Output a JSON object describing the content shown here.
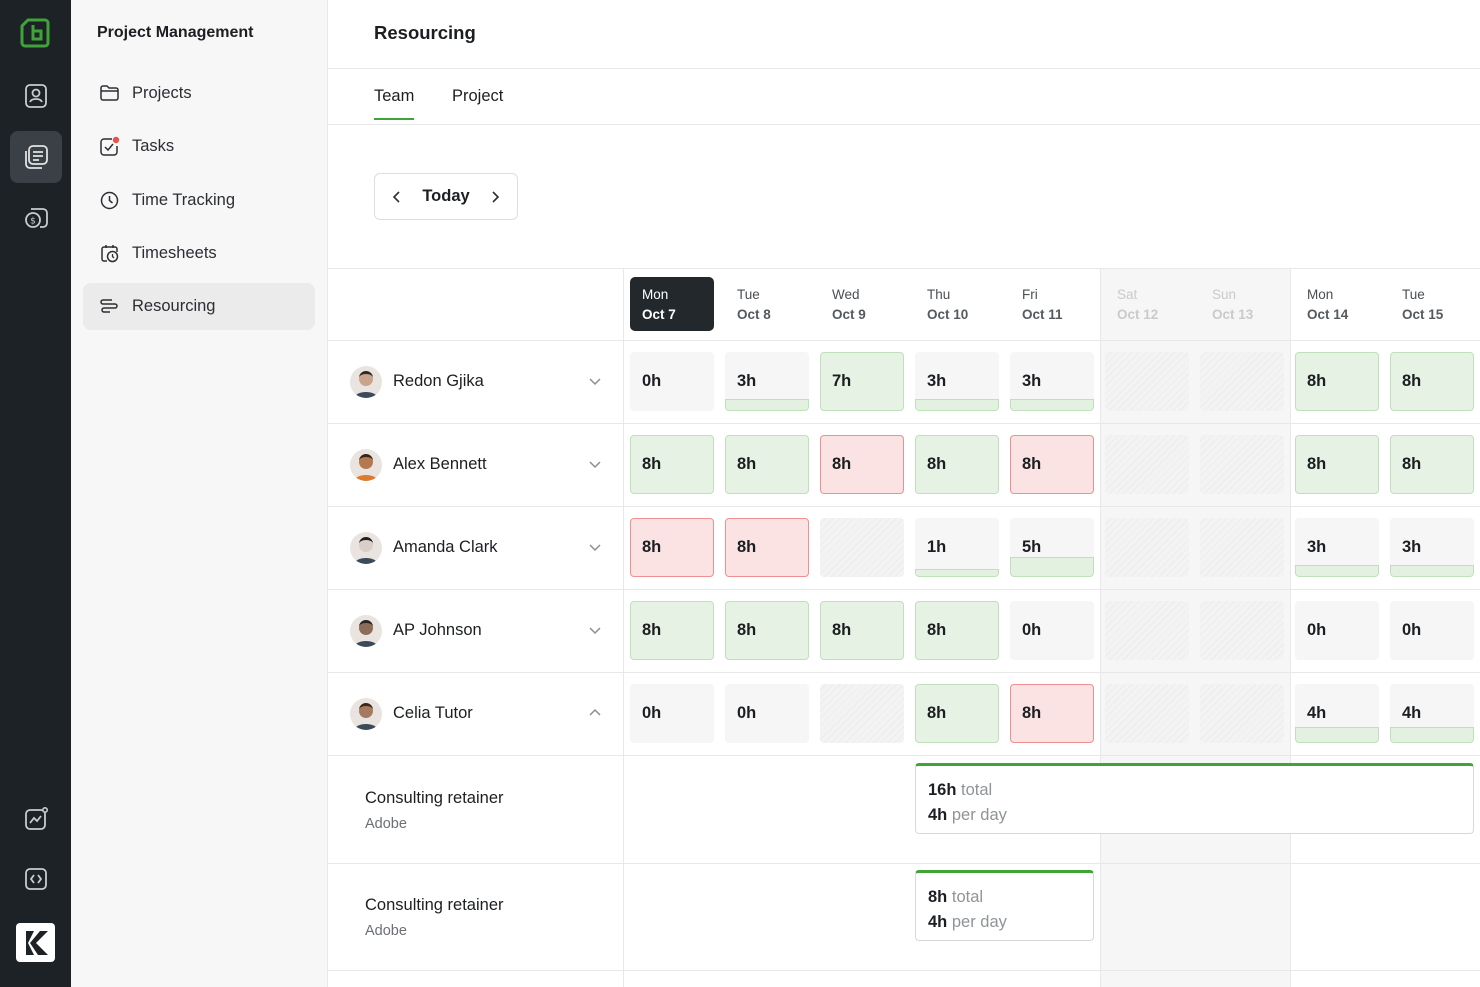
{
  "sidebar": {
    "title": "Project Management",
    "items": [
      {
        "label": "Projects",
        "icon": "folder-icon"
      },
      {
        "label": "Tasks",
        "icon": "task-check-icon"
      },
      {
        "label": "Time Tracking",
        "icon": "clock-icon"
      },
      {
        "label": "Timesheets",
        "icon": "calendar-clock-icon"
      },
      {
        "label": "Resourcing",
        "icon": "resourcing-icon",
        "active": true
      }
    ]
  },
  "rail": {
    "icons": [
      "app-logo-icon",
      "contacts-icon",
      "documents-icon",
      "billing-icon",
      "analytics-icon",
      "code-icon",
      "brand-logo-icon"
    ],
    "accent": "#3fa437"
  },
  "header": {
    "title": "Resourcing",
    "tabs": [
      {
        "label": "Team",
        "active": true
      },
      {
        "label": "Project",
        "active": false
      }
    ]
  },
  "date_nav": {
    "today_label": "Today"
  },
  "days": [
    {
      "dow": "Mon",
      "date": "Oct 7",
      "today": true,
      "weekend": false
    },
    {
      "dow": "Tue",
      "date": "Oct 8",
      "today": false,
      "weekend": false
    },
    {
      "dow": "Wed",
      "date": "Oct 9",
      "today": false,
      "weekend": false
    },
    {
      "dow": "Thu",
      "date": "Oct 10",
      "today": false,
      "weekend": false
    },
    {
      "dow": "Fri",
      "date": "Oct 11",
      "today": false,
      "weekend": false
    },
    {
      "dow": "Sat",
      "date": "Oct 12",
      "today": false,
      "weekend": true
    },
    {
      "dow": "Sun",
      "date": "Oct 13",
      "today": false,
      "weekend": true
    },
    {
      "dow": "Mon",
      "date": "Oct 14",
      "today": false,
      "weekend": false
    },
    {
      "dow": "Tue",
      "date": "Oct 15",
      "today": false,
      "weekend": false
    }
  ],
  "people": [
    {
      "name": "Redon Gjika",
      "expanded": false,
      "cells": [
        {
          "hours": "0h",
          "state": "none"
        },
        {
          "hours": "3h",
          "state": "partial",
          "fill": 0.375
        },
        {
          "hours": "7h",
          "state": "full"
        },
        {
          "hours": "3h",
          "state": "partial",
          "fill": 0.375
        },
        {
          "hours": "3h",
          "state": "partial",
          "fill": 0.375
        },
        {
          "hours": "",
          "state": "empty"
        },
        {
          "hours": "",
          "state": "empty"
        },
        {
          "hours": "8h",
          "state": "full"
        },
        {
          "hours": "8h",
          "state": "full"
        }
      ]
    },
    {
      "name": "Alex Bennett",
      "expanded": false,
      "cells": [
        {
          "hours": "8h",
          "state": "full"
        },
        {
          "hours": "8h",
          "state": "full"
        },
        {
          "hours": "8h",
          "state": "over"
        },
        {
          "hours": "8h",
          "state": "full"
        },
        {
          "hours": "8h",
          "state": "over"
        },
        {
          "hours": "",
          "state": "empty"
        },
        {
          "hours": "",
          "state": "empty"
        },
        {
          "hours": "8h",
          "state": "full"
        },
        {
          "hours": "8h",
          "state": "full"
        }
      ]
    },
    {
      "name": "Amanda Clark",
      "expanded": false,
      "cells": [
        {
          "hours": "8h",
          "state": "over"
        },
        {
          "hours": "8h",
          "state": "over"
        },
        {
          "hours": "",
          "state": "empty"
        },
        {
          "hours": "1h",
          "state": "partial",
          "fill": 0.125
        },
        {
          "hours": "5h",
          "state": "partial",
          "fill": 0.625
        },
        {
          "hours": "",
          "state": "empty"
        },
        {
          "hours": "",
          "state": "empty"
        },
        {
          "hours": "3h",
          "state": "partial",
          "fill": 0.375
        },
        {
          "hours": "3h",
          "state": "partial",
          "fill": 0.375
        }
      ]
    },
    {
      "name": "AP Johnson",
      "expanded": false,
      "cells": [
        {
          "hours": "8h",
          "state": "full"
        },
        {
          "hours": "8h",
          "state": "full"
        },
        {
          "hours": "8h",
          "state": "full"
        },
        {
          "hours": "8h",
          "state": "full"
        },
        {
          "hours": "0h",
          "state": "none"
        },
        {
          "hours": "",
          "state": "empty"
        },
        {
          "hours": "",
          "state": "empty"
        },
        {
          "hours": "0h",
          "state": "none"
        },
        {
          "hours": "0h",
          "state": "none"
        }
      ]
    },
    {
      "name": "Celia Tutor",
      "expanded": true,
      "cells": [
        {
          "hours": "0h",
          "state": "none"
        },
        {
          "hours": "0h",
          "state": "none"
        },
        {
          "hours": "",
          "state": "empty"
        },
        {
          "hours": "8h",
          "state": "full"
        },
        {
          "hours": "8h",
          "state": "over"
        },
        {
          "hours": "",
          "state": "empty"
        },
        {
          "hours": "",
          "state": "empty"
        },
        {
          "hours": "4h",
          "state": "partial",
          "fill": 0.5
        },
        {
          "hours": "4h",
          "state": "partial",
          "fill": 0.5
        }
      ]
    }
  ],
  "assignments": [
    {
      "name": "Consulting retainer",
      "client": "Adobe",
      "total": "16h",
      "total_suffix": "total",
      "per_day": "4h",
      "per_day_suffix": "per day",
      "start_day": 3,
      "end_day": 8
    },
    {
      "name": "Consulting retainer",
      "client": "Adobe",
      "total": "8h",
      "total_suffix": "total",
      "per_day": "4h",
      "per_day_suffix": "per day",
      "start_day": 3,
      "end_day": 4
    }
  ],
  "colors": {
    "rail_bg": "#1d2226",
    "accent_green": "#3fa437",
    "full_bg": "#e6f3e4",
    "over_bg": "#fbe3e3",
    "over_border": "#ef8f8f"
  }
}
